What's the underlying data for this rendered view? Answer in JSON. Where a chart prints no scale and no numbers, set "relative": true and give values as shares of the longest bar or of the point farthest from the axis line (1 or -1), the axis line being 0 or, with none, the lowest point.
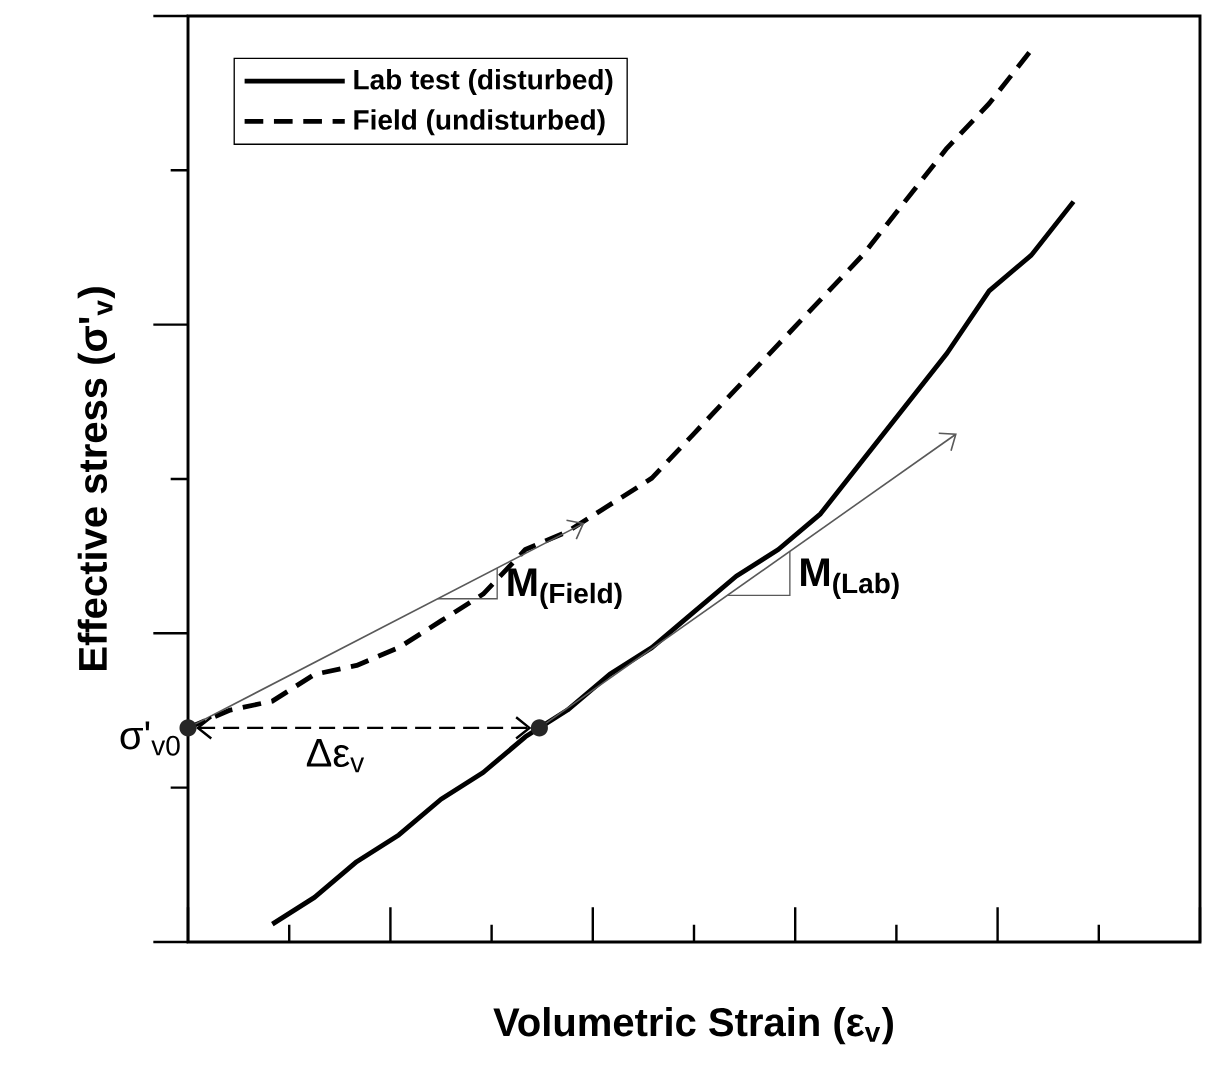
{
  "chart_data": {
    "type": "line",
    "relative": true,
    "xlabel": "Volumetric Strain (ε$_{v}$)",
    "ylabel": "Effective stress (σ'$_{v}$)",
    "categories": [
      null,
      null,
      null,
      null,
      null,
      null,
      null,
      null,
      null,
      null,
      null,
      null,
      null,
      null,
      null,
      null,
      null,
      null,
      null,
      null,
      null,
      null,
      null,
      null,
      null
    ],
    "series": [
      {
        "name": "Lab test (disturbed)",
        "color": "#000000",
        "line_style": "solid",
        "values": [
          null,
          null,
          0.02,
          0.05,
          0.09,
          0.12,
          0.16,
          0.19,
          0.23,
          0.26,
          0.3,
          0.33,
          0.37,
          0.41,
          0.44,
          0.48,
          0.54,
          0.6,
          0.66,
          0.73,
          0.77,
          0.83,
          null,
          null,
          null
        ]
      },
      {
        "name": "Field (undisturbed)",
        "color": "#000000",
        "line_style": "dashed",
        "values": [
          0.24,
          0.26,
          0.27,
          0.3,
          0.31,
          0.33,
          0.36,
          0.39,
          0.44,
          0.46,
          0.49,
          0.52,
          0.57,
          0.62,
          0.67,
          0.72,
          0.77,
          0.83,
          0.89,
          0.94,
          1.0,
          null,
          null,
          null,
          null
        ]
      }
    ],
    "annotations": [
      "σ'$_{v0}$",
      "Δε$_{v}$",
      "M$_{(Field)}$",
      "M$_{(Lab)}$"
    ],
    "legend": "top left",
    "marker": "none"
  }
}
